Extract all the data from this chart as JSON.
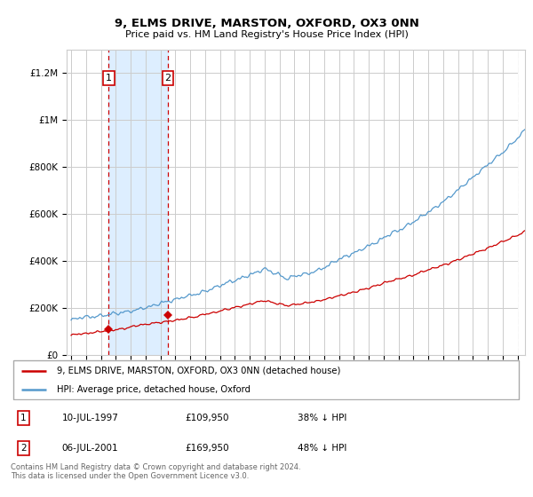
{
  "title": "9, ELMS DRIVE, MARSTON, OXFORD, OX3 0NN",
  "subtitle": "Price paid vs. HM Land Registry's House Price Index (HPI)",
  "ylabel_ticks": [
    "£0",
    "£200K",
    "£400K",
    "£600K",
    "£800K",
    "£1M",
    "£1.2M"
  ],
  "ytick_values": [
    0,
    200000,
    400000,
    600000,
    800000,
    1000000,
    1200000
  ],
  "ylim": [
    0,
    1300000
  ],
  "xlim_start": 1994.7,
  "xlim_end": 2025.5,
  "purchase1_x": 1997.52,
  "purchase1_y": 109950,
  "purchase2_x": 2001.51,
  "purchase2_y": 169950,
  "purchase1_date": "10-JUL-1997",
  "purchase1_price": "£109,950",
  "purchase1_hpi": "38% ↓ HPI",
  "purchase2_date": "06-JUL-2001",
  "purchase2_price": "£169,950",
  "purchase2_hpi": "48% ↓ HPI",
  "legend_line1": "9, ELMS DRIVE, MARSTON, OXFORD, OX3 0NN (detached house)",
  "legend_line2": "HPI: Average price, detached house, Oxford",
  "footer": "Contains HM Land Registry data © Crown copyright and database right 2024.\nThis data is licensed under the Open Government Licence v3.0.",
  "line_color_red": "#cc0000",
  "line_color_blue": "#5599cc",
  "purchase_box_color": "#cc0000",
  "shade_color": "#ddeeff",
  "grid_color": "#cccccc",
  "hatch_color": "#cccccc"
}
